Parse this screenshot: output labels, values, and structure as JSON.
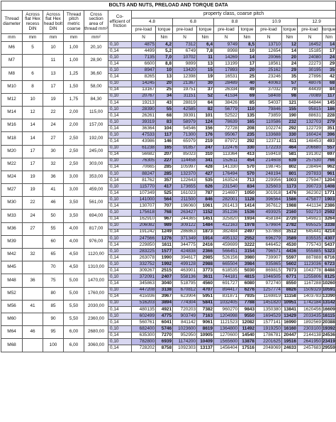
{
  "title": "BOLTS AND NUTS, PRELOAD AND TORQUE DATA",
  "headers": {
    "thread_diameter": "Thread diameter",
    "across_flat_recess": "Across flat Hex recess DIN",
    "across_flat_head": "Across flat Hex head bolt DIN",
    "thread_pitch": "Thread pitch metric coarse",
    "cross_section": "Cross section area of thread mm²",
    "coefficient": "Co-efficient of friction",
    "property_class": "property class, coarse pitch",
    "classes": [
      "4.8",
      "6.8",
      "8.8",
      "10.9",
      "12.9"
    ],
    "preload": "pre-load",
    "torque": "torque",
    "unit_mm": "mm",
    "unit_mm2": "mm²",
    "unit_N": "N",
    "unit_Nm": "Nm"
  },
  "rows": [
    {
      "d": "M6",
      "recess": "5",
      "head": "10",
      "pitch": "1,00",
      "area": "20,10",
      "r": [
        [
          "0,10",
          "4875",
          "4,2",
          "7312",
          "6,4",
          "9749",
          "8,5",
          "13710",
          "12",
          "16452",
          "14"
        ],
        [
          "0,14",
          "4499",
          "5,2",
          "6749",
          "7,8",
          "8998",
          "10",
          "12654",
          "14",
          "15185",
          "17"
        ]
      ]
    },
    {
      "d": "M7",
      "recess": "",
      "head": "11",
      "pitch": "1,00",
      "area": "28,90",
      "r": [
        [
          "0,10",
          "7135",
          "7,0",
          "10702",
          "11",
          "14269",
          "14",
          "20066",
          "20",
          "24080",
          "24"
        ],
        [
          "0,14",
          "6600",
          "8,8",
          "9899",
          "13",
          "13199",
          "17",
          "18561",
          "24",
          "22273",
          "29"
        ]
      ]
    },
    {
      "d": "M8",
      "recess": "6",
      "head": "13",
      "pitch": "1,25",
      "area": "36,60",
      "r": [
        [
          "0,10",
          "8947",
          "10",
          "13420",
          "15",
          "17893",
          "20",
          "25162",
          "29",
          "30195",
          "35"
        ],
        [
          "0,14",
          "8265",
          "13",
          "12398",
          "19",
          "16531",
          "25",
          "23246",
          "35",
          "27896",
          "42"
        ]
      ]
    },
    {
      "d": "M10",
      "recess": "8",
      "head": "17",
      "pitch": "1,50",
      "area": "58,00",
      "r": [
        [
          "0,10",
          "14245",
          "20",
          "21367",
          "30",
          "28489",
          "40",
          "40063",
          "57",
          "48076",
          "68"
        ],
        [
          "0,14",
          "13167",
          "25",
          "19751",
          "37",
          "26334",
          "49",
          "37032",
          "70",
          "44439",
          "84"
        ]
      ]
    },
    {
      "d": "M12",
      "recess": "10",
      "head": "19",
      "pitch": "1,75",
      "area": "84,30",
      "r": [
        [
          "0,10",
          "20767",
          "34",
          "31151",
          "52",
          "41534",
          "69",
          "58408",
          "98",
          "70089",
          "117"
        ],
        [
          "0,14",
          "19213",
          "43",
          "28819",
          "64",
          "38426",
          "85",
          "54037",
          "121",
          "64844",
          "145"
        ]
      ]
    },
    {
      "d": "M14",
      "recess": "12",
      "head": "22",
      "pitch": "2,00",
      "area": "115,00",
      "r": [
        [
          "0,10",
          "28390",
          "55",
          "42585",
          "82",
          "56779",
          "110",
          "79846",
          "155",
          "95815",
          "186"
        ],
        [
          "0,14",
          "26261",
          "68",
          "39391",
          "101",
          "52522",
          "135",
          "73859",
          "190",
          "88631",
          "228"
        ]
      ]
    },
    {
      "d": "M16",
      "recess": "14",
      "head": "24",
      "pitch": "2,00",
      "area": "157,00",
      "r": [
        [
          "0,10",
          "39319",
          "83",
          "58979",
          "124",
          "78639",
          "165",
          "110586",
          "232",
          "132703",
          "279"
        ],
        [
          "0,14",
          "36364",
          "104",
          "54546",
          "156",
          "72728",
          "208",
          "102274",
          "292",
          "122729",
          "351"
        ]
      ]
    },
    {
      "d": "M18",
      "recess": "14",
      "head": "27",
      "pitch": "2,50",
      "area": "192,00",
      "r": [
        [
          "0,10",
          "47533",
          "117",
          "71300",
          "176",
          "95067",
          "235",
          "133688",
          "330",
          "160424",
          "396"
        ],
        [
          "0,14",
          "43986",
          "146",
          "65979",
          "219",
          "87972",
          "292",
          "123711",
          "411",
          "148453",
          "493"
        ]
      ]
    },
    {
      "d": "M20",
      "recess": "17",
      "head": "30",
      "pitch": "2,50",
      "area": "245,00",
      "r": [
        [
          "0,10",
          "61238",
          "165",
          "91857",
          "247",
          "122476",
          "330",
          "172233",
          "464",
          "206680",
          "557"
        ],
        [
          "0,14",
          "56682",
          "207",
          "85023",
          "310",
          "113364",
          "413",
          "159418",
          "581",
          "191302",
          "697"
        ]
      ]
    },
    {
      "d": "M22",
      "recess": "17",
      "head": "32",
      "pitch": "2,50",
      "area": "303,00",
      "r": [
        [
          "0,10",
          "76305",
          "227",
          "114458",
          "341",
          "152611",
          "454",
          "214608",
          "639",
          "257530",
          "766"
        ],
        [
          "0,14",
          "70665",
          "285",
          "105997",
          "428",
          "141330",
          "570",
          "198745",
          "802",
          "238494",
          "962"
        ]
      ]
    },
    {
      "d": "M24",
      "recess": "19",
      "head": "36",
      "pitch": "3,00",
      "area": "353,00",
      "r": [
        [
          "0,10",
          "88247",
          "285",
          "132370",
          "427",
          "176494",
          "570",
          "248194",
          "801",
          "297833",
          "961"
        ],
        [
          "0,14",
          "81762",
          "357",
          "122643",
          "535",
          "163524",
          "713",
          "229956",
          "1003",
          "275947",
          "1204"
        ]
      ]
    },
    {
      "d": "M27",
      "recess": "19",
      "head": "41",
      "pitch": "3,00",
      "area": "459,00",
      "r": [
        [
          "0,10",
          "115770",
          "417",
          "173655",
          "626",
          "231540",
          "834",
          "325603",
          "1173",
          "390723",
          "1408"
        ],
        [
          "0,14",
          "107349",
          "525",
          "161023",
          "787",
          "214697",
          "1050",
          "301918",
          "1476",
          "362302",
          "1771"
        ]
      ]
    },
    {
      "d": "M30",
      "recess": "22",
      "head": "46",
      "pitch": "3,50",
      "area": "561,00",
      "r": [
        [
          "0,10",
          "141000",
          "564",
          "211500",
          "846",
          "282001",
          "1128",
          "396564",
          "1586",
          "475877",
          "1903"
        ],
        [
          "0,14",
          "130707",
          "707",
          "196060",
          "1061",
          "261413",
          "1414",
          "367612",
          "1988",
          "441134",
          "2386"
        ]
      ]
    },
    {
      "d": "M33",
      "recess": "24",
      "head": "50",
      "pitch": "3,50",
      "area": "694,00",
      "r": [
        [
          "0,10",
          "175618",
          "768",
          "263427",
          "1152",
          "351236",
          "1536",
          "493925",
          "2160",
          "592710",
          "2592"
        ],
        [
          "0,14",
          "162910",
          "967",
          "244365",
          "1451",
          "325820",
          "1934",
          "458184",
          "2720",
          "549821",
          "3264"
        ]
      ]
    },
    {
      "d": "M36",
      "recess": "27",
      "head": "55",
      "pitch": "4,00",
      "area": "817,00",
      "r": [
        [
          "0,10",
          "206082",
          "989",
          "309122",
          "1484",
          "412163",
          "1978",
          "579604",
          "2782",
          "695525",
          "3338"
        ],
        [
          "0,14",
          "191242",
          "1249",
          "286863",
          "1873",
          "382484",
          "2497",
          "537868",
          "3512",
          "645441",
          "4214"
        ]
      ]
    },
    {
      "d": "M39",
      "recess": "",
      "head": "60",
      "pitch": "4,00",
      "area": "976,00",
      "r": [
        [
          "0,10",
          "247566",
          "1276",
          "371349",
          "1914",
          "495132",
          "2552",
          "696279",
          "3589",
          "835535",
          "4307"
        ],
        [
          "0,14",
          "229850",
          "1611",
          "344775",
          "2416",
          "459699",
          "3222",
          "646452",
          "4530",
          "775743",
          "5437"
        ]
      ]
    },
    {
      "d": "M42",
      "recess": "32",
      "head": "65",
      "pitch": "4,50",
      "area": "1120,00",
      "r": [
        [
          "0,10",
          "283225",
          "1577",
          "424838",
          "2366",
          "566451",
          "3154",
          "796571",
          "4436",
          "955885",
          "5323"
        ],
        [
          "0,14",
          "263078",
          "1990",
          "394617",
          "2985",
          "526156",
          "3980",
          "739907",
          "5597",
          "887888",
          "6716"
        ]
      ]
    },
    {
      "d": "M45",
      "recess": "",
      "head": "70",
      "pitch": "4,50",
      "area": "1310,00",
      "r": [
        [
          "0,10",
          "332752",
          "1992",
          "499128",
          "2988",
          "665504",
          "3984",
          "935865",
          "5602",
          "1123036",
          "6723"
        ],
        [
          "0,14",
          "309267",
          "2515",
          "463901",
          "3773",
          "618535",
          "5030",
          "869815",
          "7073",
          "1043778",
          "8488"
        ]
      ]
    },
    {
      "d": "M48",
      "recess": "36",
      "head": "75",
      "pitch": "5,00",
      "area": "1470,00",
      "r": [
        [
          "0,10",
          "372091",
          "2407",
          "558136",
          "3611",
          "744181",
          "4815",
          "1046505",
          "6771",
          "1255806",
          "8125"
        ],
        [
          "0,14",
          "345863",
          "3040",
          "518795",
          "4560",
          "691727",
          "6080",
          "972740",
          "8550",
          "1167288",
          "10260"
        ]
      ]
    },
    {
      "d": "M52",
      "recess": "",
      "head": "80",
      "pitch": "5,00",
      "area": "1760,00",
      "r": [
        [
          "0,10",
          "447208",
          "3138",
          "670812",
          "4707",
          "894417",
          "6276",
          "1257774",
          "8826",
          "1509329",
          "10591"
        ],
        [
          "0,14",
          "415936",
          "3967",
          "623904",
          "5951",
          "831871",
          "7935",
          "1169819",
          "11158",
          "1403783",
          "13390"
        ]
      ]
    },
    {
      "d": "M56",
      "recess": "41",
      "head": "85",
      "pitch": "5,50",
      "area": "2030,00",
      "r": [
        [
          "0,10",
          "516203",
          "3894",
          "774304",
          "5841",
          "1032405",
          "7788",
          "1451820",
          "10951",
          "1742184",
          "13142"
        ],
        [
          "0,14",
          "480135",
          "4921",
          "720203",
          "7382",
          "960270",
          "9843",
          "1350380",
          "13841",
          "1620456",
          "16609"
        ]
      ]
    },
    {
      "d": "M60",
      "recess": "",
      "head": "90",
      "pitch": "5,50",
      "area": "2360,00",
      "r": [
        [
          "0,10",
          "602499",
          "4775",
          "903749",
          "7163",
          "1204998",
          "9550",
          "1694529",
          "13429",
          "2033435",
          "16115"
        ],
        [
          "0,14",
          "560761",
          "6041",
          "841142",
          "9061",
          "1121523",
          "12082",
          "1577141",
          "16990",
          "1892569",
          "20388"
        ]
      ]
    },
    {
      "d": "M64",
      "recess": "46",
      "head": "95",
      "pitch": "6,00",
      "area": "2680,00",
      "r": [
        [
          "0,10",
          "682400",
          "5746",
          "1023600",
          "8619",
          "1364800",
          "11492",
          "1919250",
          "16160",
          "2303100",
          "19392"
        ],
        [
          "0,14",
          "635300",
          "7270",
          "952950",
          "10905",
          "1270600",
          "14540",
          "1786781",
          "20447",
          "2144138",
          "24536"
        ]
      ]
    },
    {
      "d": "M68",
      "recess": "",
      "head": "100",
      "pitch": "6,00",
      "area": "3060,00",
      "r": [
        [
          "0,10",
          "782800",
          "6939",
          "1174200",
          "10409",
          "1565600",
          "13878",
          "2201625",
          "19516",
          "2641950",
          "23419"
        ],
        [
          "0,14",
          "728202",
          "8758",
          "1092303",
          "13137",
          "1456404",
          "17516",
          "2048069",
          "24633",
          "2457683",
          "29559"
        ]
      ]
    }
  ]
}
